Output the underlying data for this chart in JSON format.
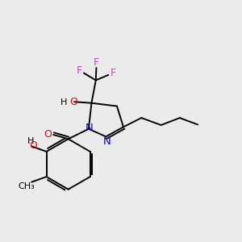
{
  "bg_color": "#ebebeb",
  "bond_color": "#000000",
  "N_color": "#0000ff",
  "O_color": "#ff0000",
  "F_color": "#cc44cc",
  "figsize": [
    3.0,
    3.0
  ],
  "dpi": 100,
  "xlim": [
    0,
    10
  ],
  "ylim": [
    0,
    10
  ]
}
